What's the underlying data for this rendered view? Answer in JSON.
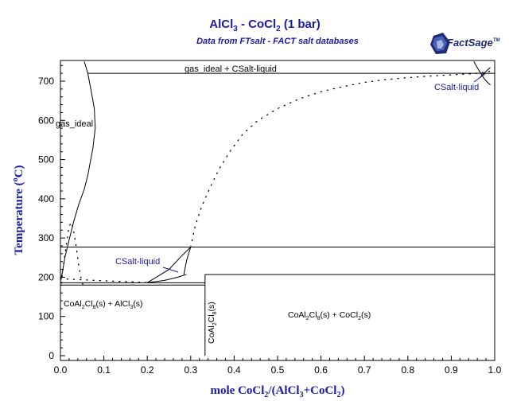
{
  "chart_data": {
    "type": "phase-diagram",
    "title": {
      "pre": "AlCl",
      "sub1": "3",
      "mid": " - CoCl",
      "sub2": "2",
      "post": " (1 bar)"
    },
    "subtitle": "Data from FTsalt - FACT salt databases",
    "logo": {
      "text": "FactSage",
      "tm": "TM"
    },
    "xlabel": {
      "pre": "mole CoCl",
      "sub1": "2",
      "mid": "/(AlCl",
      "sub2": "3",
      "mid2": "+CoCl",
      "sub3": "2",
      "post": ")"
    },
    "ylabel": {
      "pre": "Temperature (",
      "sup": "o",
      "post": "C)"
    },
    "xlim": [
      0,
      1
    ],
    "ylim": [
      0,
      750
    ],
    "xticks": [
      "0.0",
      "0.1",
      "0.2",
      "0.3",
      "0.4",
      "0.5",
      "0.6",
      "0.7",
      "0.8",
      "0.9",
      "1.0"
    ],
    "yticks": [
      "0",
      "100",
      "200",
      "300",
      "400",
      "500",
      "600",
      "700"
    ],
    "accent_color": "#1a1aa6",
    "region_labels": {
      "gas_ideal_top": "gas_ideal + CSalt-liquid",
      "gas_ideal_left": "gas_ideal",
      "csalt_liquid_right": "CSalt-liquid",
      "csalt_liquid_left": "CSalt-liquid",
      "solid_left": {
        "p1": "CoAl",
        "s1": "2",
        "p2": "Cl",
        "s2": "8",
        "p3": "(s) + AlCl",
        "s3": "3",
        "p4": "(s)"
      },
      "solid_vertical": {
        "p1": "CoAl",
        "s1": "2",
        "p2": "Cl",
        "s2": "8",
        "p3": "(s)"
      },
      "solid_right": {
        "p1": "CoAl",
        "s1": "2",
        "p2": "Cl",
        "s2": "8",
        "p3": "(s) + CoCl",
        "s3": "2",
        "p4": "(s)"
      }
    },
    "horizontal_lines": [
      {
        "y": 720,
        "x_from": 0.063,
        "x_to": 1.0
      },
      {
        "y": 277,
        "x_from": 0.0,
        "x_to": 1.0
      },
      {
        "y": 207,
        "x_from": 0.333,
        "x_to": 1.0
      },
      {
        "y": 186,
        "x_from": 0.0,
        "x_to": 0.333
      },
      {
        "y": 180,
        "x_from": 0.0,
        "x_to": 0.333
      }
    ],
    "vertical_lines": [
      {
        "x": 0.333,
        "y_from": 0,
        "y_to": 207
      }
    ],
    "solid_curves": [
      {
        "name": "gas-boundary-left",
        "points": [
          [
            0.0,
            190
          ],
          [
            0.005,
            215
          ],
          [
            0.01,
            250
          ],
          [
            0.02,
            295
          ],
          [
            0.03,
            340
          ],
          [
            0.042,
            385
          ],
          [
            0.055,
            425
          ],
          [
            0.063,
            460
          ],
          [
            0.075,
            530
          ],
          [
            0.08,
            580
          ],
          [
            0.078,
            630
          ],
          [
            0.07,
            680
          ],
          [
            0.063,
            720
          ],
          [
            0.055,
            750
          ]
        ]
      },
      {
        "name": "csalt-lower-branch",
        "points": [
          [
            0.2,
            186
          ],
          [
            0.24,
            192
          ],
          [
            0.27,
            200
          ],
          [
            0.29,
            207
          ]
        ]
      },
      {
        "name": "csalt-upper-branch",
        "points": [
          [
            0.2,
            186
          ],
          [
            0.25,
            220
          ],
          [
            0.275,
            250
          ],
          [
            0.3,
            277
          ]
        ]
      },
      {
        "name": "csalt-right-edge",
        "points": [
          [
            0.284,
            207
          ],
          [
            0.291,
            245
          ],
          [
            0.3,
            277
          ]
        ]
      },
      {
        "name": "gas-right-1",
        "points": [
          [
            0.952,
            750
          ],
          [
            0.965,
            725
          ],
          [
            0.978,
            703
          ],
          [
            0.99,
            690
          ]
        ]
      },
      {
        "name": "gas-right-2",
        "points": [
          [
            0.99,
            735
          ],
          [
            0.975,
            720
          ],
          [
            0.965,
            708
          ]
        ]
      }
    ],
    "dotted_curves": [
      {
        "name": "liquidus-main",
        "points": [
          [
            0.3,
            277
          ],
          [
            0.31,
            330
          ],
          [
            0.325,
            380
          ],
          [
            0.345,
            430
          ],
          [
            0.365,
            475
          ],
          [
            0.39,
            520
          ],
          [
            0.42,
            565
          ],
          [
            0.455,
            600
          ],
          [
            0.5,
            630
          ],
          [
            0.55,
            655
          ],
          [
            0.6,
            673
          ],
          [
            0.65,
            686
          ],
          [
            0.7,
            697
          ],
          [
            0.75,
            704
          ],
          [
            0.8,
            709
          ],
          [
            0.85,
            713
          ],
          [
            0.9,
            716
          ],
          [
            0.95,
            719
          ],
          [
            0.98,
            723
          ],
          [
            1.0,
            728
          ]
        ]
      },
      {
        "name": "liquidus-left",
        "points": [
          [
            0.002,
            185
          ],
          [
            0.008,
            240
          ],
          [
            0.014,
            285
          ],
          [
            0.02,
            330
          ],
          [
            0.025,
            340
          ],
          [
            0.03,
            320
          ],
          [
            0.036,
            280
          ],
          [
            0.042,
            230
          ],
          [
            0.048,
            195
          ],
          [
            0.052,
            180
          ]
        ]
      },
      {
        "name": "liquidus-bottom",
        "points": [
          [
            0.0,
            196
          ],
          [
            0.06,
            193
          ],
          [
            0.12,
            190
          ],
          [
            0.17,
            188
          ],
          [
            0.2,
            186
          ]
        ]
      }
    ]
  }
}
